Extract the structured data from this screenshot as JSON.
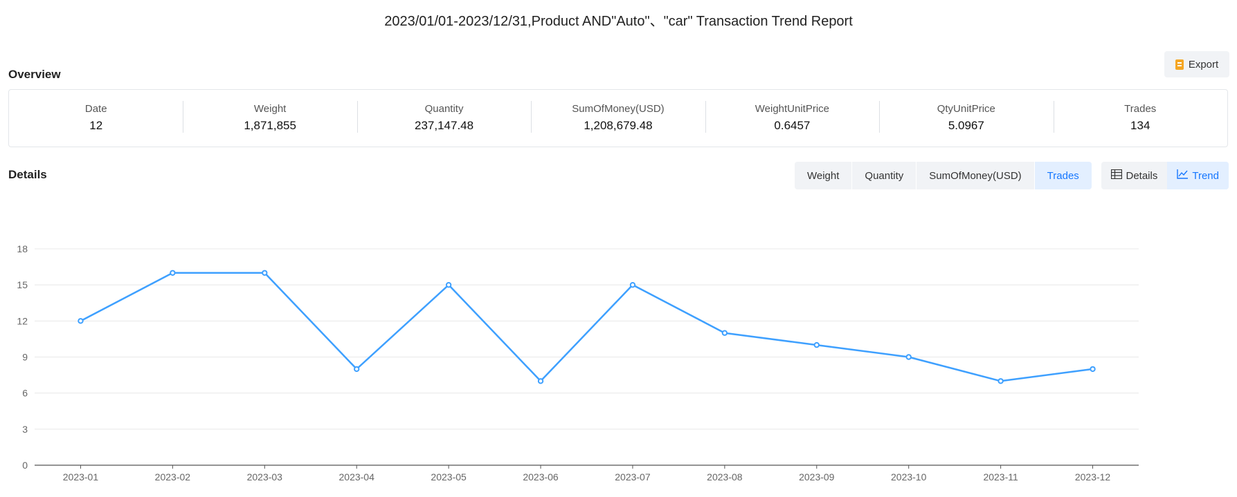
{
  "report": {
    "title": "2023/01/01-2023/12/31,Product AND\"Auto\"、\"car\" Transaction Trend Report"
  },
  "overview": {
    "title": "Overview",
    "export_label": "Export",
    "items": [
      {
        "label": "Date",
        "value": "12"
      },
      {
        "label": "Weight",
        "value": "1,871,855"
      },
      {
        "label": "Quantity",
        "value": "237,147.48"
      },
      {
        "label": "SumOfMoney(USD)",
        "value": "1,208,679.48"
      },
      {
        "label": "WeightUnitPrice",
        "value": "0.6457"
      },
      {
        "label": "QtyUnitPrice",
        "value": "5.0967"
      },
      {
        "label": "Trades",
        "value": "134"
      }
    ]
  },
  "details": {
    "title": "Details",
    "metric_tabs": [
      {
        "label": "Weight",
        "active": false
      },
      {
        "label": "Quantity",
        "active": false
      },
      {
        "label": "SumOfMoney(USD)",
        "active": false
      },
      {
        "label": "Trades",
        "active": true
      }
    ],
    "view_tabs": [
      {
        "label": "Details",
        "icon": "table-icon",
        "active": false
      },
      {
        "label": "Trend",
        "icon": "line-chart-icon",
        "active": true
      }
    ]
  },
  "colors": {
    "accent": "#1677ff",
    "line": "#3ea0ff",
    "grid": "#e8e8e8",
    "axis": "#555555",
    "tick_text": "#666666",
    "export_icon": "#f5a623"
  },
  "chart_data": {
    "type": "line",
    "title": "",
    "xlabel": "",
    "ylabel": "",
    "categories": [
      "2023-01",
      "2023-02",
      "2023-03",
      "2023-04",
      "2023-05",
      "2023-06",
      "2023-07",
      "2023-08",
      "2023-09",
      "2023-10",
      "2023-11",
      "2023-12"
    ],
    "series": [
      {
        "name": "Trades",
        "values": [
          12,
          16,
          16,
          8,
          15,
          7,
          15,
          11,
          10,
          9,
          7,
          8
        ]
      }
    ],
    "ylim": [
      0,
      18
    ],
    "yticks": [
      0,
      3,
      6,
      9,
      12,
      15,
      18
    ],
    "grid": true
  }
}
